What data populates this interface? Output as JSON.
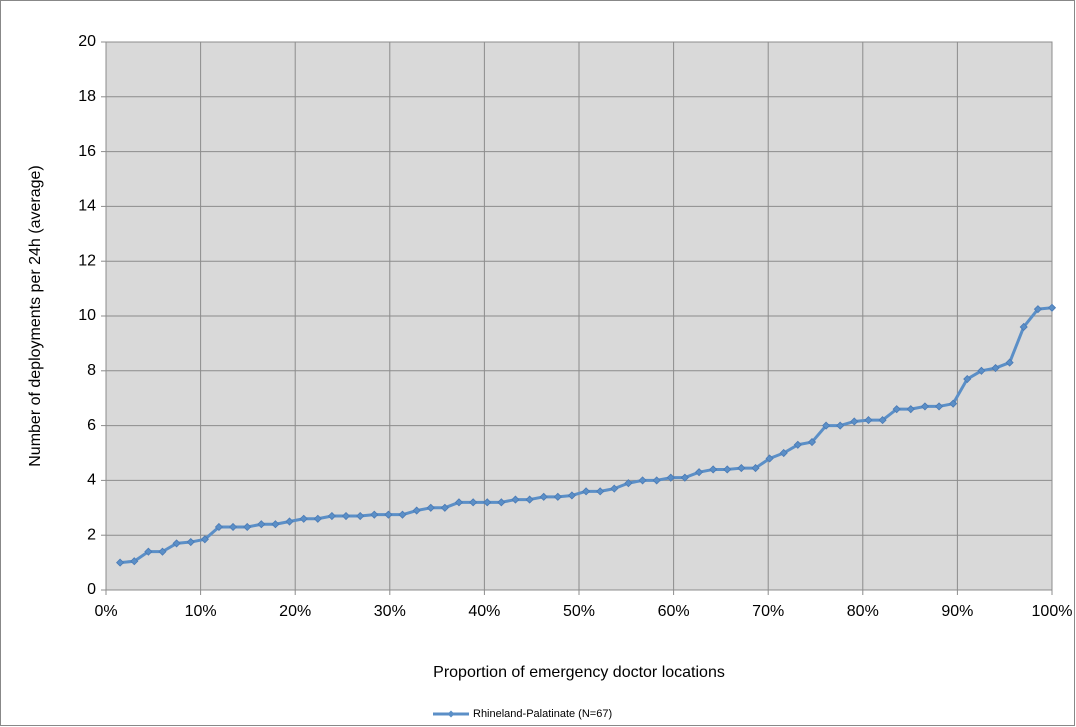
{
  "chart_data": {
    "type": "line",
    "x_label": "Proportion of emergency doctor locations",
    "y_label": "Number of deployments per 24h (average)",
    "x": [
      1.49,
      2.99,
      4.48,
      5.97,
      7.46,
      8.96,
      10.45,
      11.94,
      13.43,
      14.93,
      16.42,
      17.91,
      19.4,
      20.9,
      22.39,
      23.88,
      25.37,
      26.87,
      28.36,
      29.85,
      31.34,
      32.84,
      34.33,
      35.82,
      37.31,
      38.81,
      40.3,
      41.79,
      43.28,
      44.78,
      46.27,
      47.76,
      49.25,
      50.75,
      52.24,
      53.73,
      55.22,
      56.72,
      58.21,
      59.7,
      61.19,
      62.69,
      64.18,
      65.67,
      67.16,
      68.66,
      70.15,
      71.64,
      73.13,
      74.63,
      76.12,
      77.61,
      79.1,
      80.6,
      82.09,
      83.58,
      85.07,
      86.57,
      88.06,
      89.55,
      91.04,
      92.54,
      94.03,
      95.52,
      97.01,
      98.51,
      100
    ],
    "series": [
      {
        "name": "Rhineland-Palatinate (N=67)",
        "color": "#5b8fc7",
        "values": [
          1.0,
          1.05,
          1.4,
          1.4,
          1.7,
          1.75,
          1.85,
          2.3,
          2.3,
          2.3,
          2.4,
          2.4,
          2.5,
          2.6,
          2.6,
          2.7,
          2.7,
          2.7,
          2.75,
          2.75,
          2.75,
          2.9,
          3.0,
          3.0,
          3.2,
          3.2,
          3.2,
          3.2,
          3.3,
          3.3,
          3.4,
          3.4,
          3.45,
          3.6,
          3.6,
          3.7,
          3.9,
          4.0,
          4.0,
          4.1,
          4.1,
          4.3,
          4.4,
          4.4,
          4.45,
          4.45,
          4.8,
          5.0,
          5.3,
          5.4,
          6.0,
          6.0,
          6.15,
          6.2,
          6.2,
          6.6,
          6.6,
          6.7,
          6.7,
          6.8,
          7.7,
          8.0,
          8.1,
          8.3,
          9.6,
          10.25,
          10.3
        ]
      }
    ],
    "xlim": [
      0,
      100
    ],
    "xticks": [
      {
        "value": 0,
        "label": "0%"
      },
      {
        "value": 10,
        "label": "10%"
      },
      {
        "value": 20,
        "label": "20%"
      },
      {
        "value": 30,
        "label": "30%"
      },
      {
        "value": 40,
        "label": "40%"
      },
      {
        "value": 50,
        "label": "50%"
      },
      {
        "value": 60,
        "label": "60%"
      },
      {
        "value": 70,
        "label": "70%"
      },
      {
        "value": 80,
        "label": "80%"
      },
      {
        "value": 90,
        "label": "90%"
      },
      {
        "value": 100,
        "label": "100%"
      }
    ],
    "ylim": [
      0,
      20
    ],
    "yticks": [
      0,
      2,
      4,
      6,
      8,
      10,
      12,
      14,
      16,
      18,
      20
    ],
    "grid": true,
    "legend": "bottom"
  }
}
